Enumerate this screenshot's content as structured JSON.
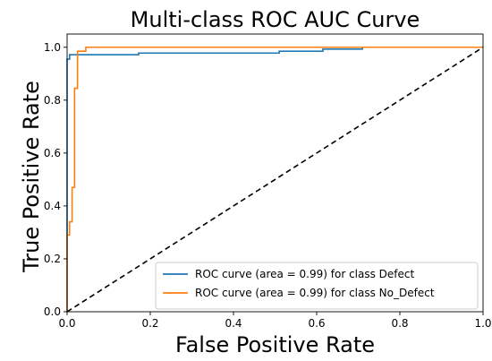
{
  "chart_data": {
    "type": "line",
    "title": "Multi-class ROC AUC Curve",
    "xlabel": "False Positive Rate",
    "ylabel": "True Positive Rate",
    "xlim": [
      0.0,
      1.0
    ],
    "ylim": [
      0.0,
      1.05
    ],
    "xticks": [
      0.0,
      0.2,
      0.4,
      0.6,
      0.8,
      1.0
    ],
    "xtick_labels": [
      "0.0",
      "0.2",
      "0.4",
      "0.6",
      "0.8",
      "1.0"
    ],
    "yticks": [
      0.0,
      0.2,
      0.4,
      0.6,
      0.8,
      1.0
    ],
    "ytick_labels": [
      "0.0",
      "0.2",
      "0.4",
      "0.6",
      "0.8",
      "1.0"
    ],
    "grid": false,
    "legend_position": "lower-right",
    "series": [
      {
        "name": "ROC curve (area = 0.99) for class Defect",
        "color": "#1f77b4",
        "line_style": "solid",
        "x": [
          0.0,
          0.0,
          0.006,
          0.006,
          0.172,
          0.172,
          0.51,
          0.51,
          0.615,
          0.615,
          0.71,
          0.71,
          1.0
        ],
        "y": [
          0.0,
          0.955,
          0.955,
          0.972,
          0.972,
          0.978,
          0.978,
          0.985,
          0.985,
          0.993,
          0.993,
          1.0,
          1.0
        ]
      },
      {
        "name": "ROC curve (area = 0.99) for class No_Defect",
        "color": "#ff7f0e",
        "line_style": "solid",
        "x": [
          0.0,
          0.0,
          0.006,
          0.006,
          0.012,
          0.012,
          0.018,
          0.018,
          0.025,
          0.025,
          0.045,
          0.045,
          1.0
        ],
        "y": [
          0.0,
          0.29,
          0.29,
          0.34,
          0.34,
          0.47,
          0.47,
          0.845,
          0.845,
          0.985,
          0.985,
          1.0,
          1.0
        ]
      },
      {
        "color": "#000000",
        "line_style": "dashed",
        "x": [
          0.0,
          1.0
        ],
        "y": [
          0.0,
          1.0
        ]
      }
    ]
  }
}
